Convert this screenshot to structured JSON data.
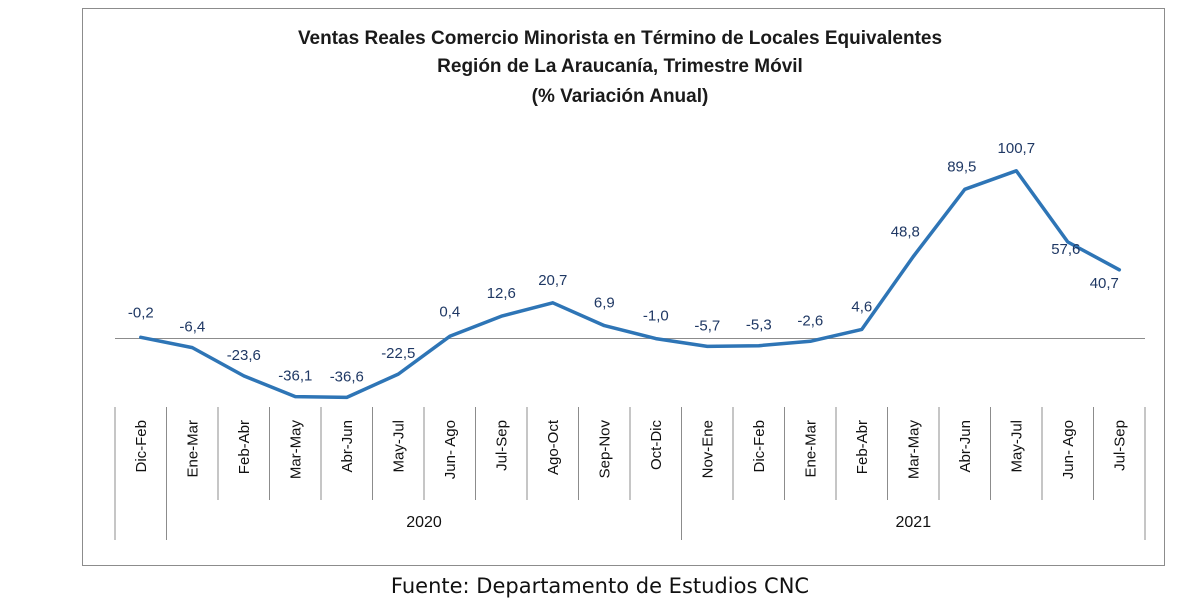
{
  "chart_data": {
    "type": "line",
    "title": [
      "Ventas Reales Comercio Minorista  en Término de Locales Equivalentes",
      "Región de La Araucanía, Trimestre Móvil",
      "(% Variación Anual)"
    ],
    "categories": [
      "Dic-Feb",
      "Ene-Mar",
      "Feb-Abr",
      "Mar-May",
      "Abr-Jun",
      "May-Jul",
      "Jun- Ago",
      "Jul-Sep",
      "Ago-Oct",
      "Sep-Nov",
      "Oct-Dic",
      "Nov-Ene",
      "Dic-Feb",
      "Ene-Mar",
      "Feb-Abr",
      "Mar-May",
      "Abr-Jun",
      "May-Jul",
      "Jun- Ago",
      "Jul-Sep"
    ],
    "values": [
      -0.2,
      -6.4,
      -23.6,
      -36.1,
      -36.6,
      -22.5,
      0.4,
      12.6,
      20.7,
      6.9,
      -1.0,
      -5.7,
      -5.3,
      -2.6,
      4.6,
      48.8,
      89.5,
      100.7,
      57.6,
      40.7
    ],
    "data_labels": [
      "-0,2",
      "-6,4",
      "-23,6",
      "-36,1",
      "-36,6",
      "-22,5",
      "0,4",
      "12,6",
      "20,7",
      "6,9",
      "-1,0",
      "-5,7",
      "-5,3",
      "-2,6",
      "4,6",
      "48,8",
      "89,5",
      "100,7",
      "57,6",
      "40,7"
    ],
    "groups": [
      {
        "label": "2020",
        "start": 1,
        "end": 10
      },
      {
        "label": "2021",
        "start": 11,
        "end": 19
      }
    ],
    "line_color": "#2e75b6",
    "grid": false
  },
  "source": "Fuente: Departamento de Estudios CNC"
}
